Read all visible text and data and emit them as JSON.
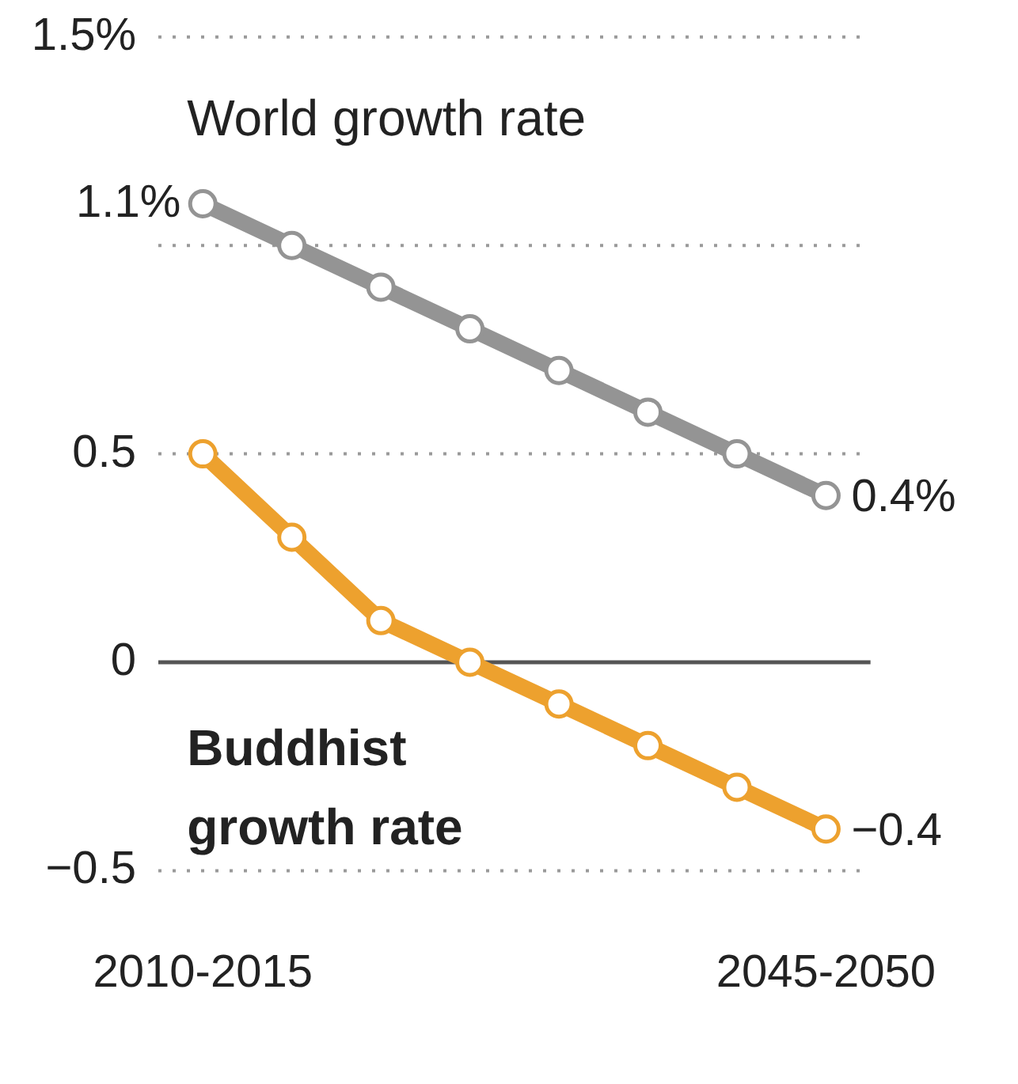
{
  "chart_data": {
    "type": "line",
    "categories": [
      "2010-2015",
      null,
      null,
      null,
      null,
      null,
      null,
      "2045-2050"
    ],
    "series": [
      {
        "name": "World growth rate",
        "color": "#949494",
        "values": [
          1.1,
          1.0,
          0.9,
          0.8,
          0.7,
          0.6,
          0.5,
          0.4
        ],
        "value_labels": [
          "1.1%",
          null,
          null,
          null,
          null,
          null,
          null,
          "0.4%"
        ]
      },
      {
        "name": "Buddhist growth rate",
        "color": "#eda12e",
        "values": [
          0.5,
          0.3,
          0.1,
          0,
          -0.1,
          -0.2,
          -0.3,
          -0.4
        ],
        "value_labels": [
          null,
          null,
          null,
          null,
          null,
          null,
          null,
          "−0.4"
        ]
      }
    ],
    "ylim": [
      -0.5,
      1.5
    ],
    "yticks": [
      {
        "value": -0.5,
        "label": "−0.5"
      },
      0,
      0.5,
      {
        "value": 1,
        "label": null
      },
      {
        "value": 1.5,
        "label": "1.5%"
      }
    ],
    "grid": "y",
    "legend": false,
    "marker": "circle",
    "line_style": "solid",
    "ref_lines": [
      {
        "axis": "y",
        "value": 0,
        "color": "#555555"
      }
    ]
  }
}
